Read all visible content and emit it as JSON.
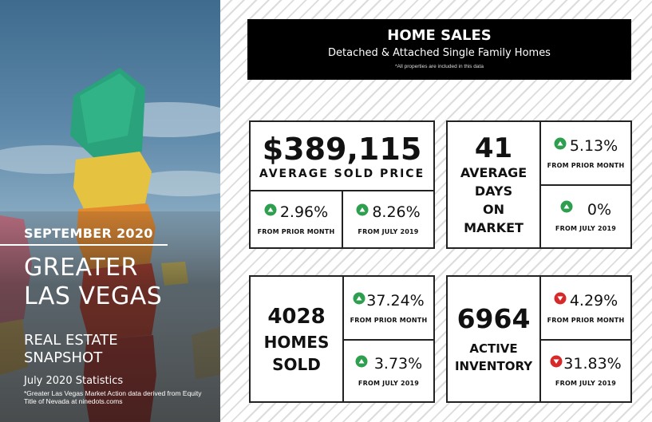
{
  "left_panel": {
    "month": "SEPTEMBER 2020",
    "city_line1": "GREATER",
    "city_line2": "LAS VEGAS",
    "snapshot_line1": "REAL ESTATE",
    "snapshot_line2": "SNAPSHOT",
    "stats_note": "July 2020 Statistics",
    "source_note": "*Greater Las Vegas Market Action data derived from Equity Title of Nevada at ninedots.coms"
  },
  "header": {
    "title": "HOME SALES",
    "subtitle": "Detached & Attached Single Family Homes",
    "note": "*All properties are included in this data"
  },
  "price": {
    "value": "$389,115",
    "label": "AVERAGE SOLD PRICE",
    "prior_month_pct": "2.96%",
    "prior_month_label": "FROM PRIOR MONTH",
    "prior_year_pct": "8.26%",
    "prior_year_label": "FROM JULY 2019"
  },
  "days": {
    "value": "41",
    "label_1": "AVERAGE",
    "label_2": "DAYS",
    "label_3": "ON",
    "label_4": "MARKET",
    "prior_month_pct": "5.13%",
    "prior_month_label": "FROM PRIOR MONTH",
    "prior_year_pct": "0%",
    "prior_year_label": "FROM JULY 2019"
  },
  "sold": {
    "value": "4028",
    "label_1": "HOMES",
    "label_2": "SOLD",
    "prior_month_pct": "37.24%",
    "prior_month_label": "FROM PRIOR MONTH",
    "prior_year_pct": "3.73%",
    "prior_year_label": "FROM JULY 2019"
  },
  "inventory": {
    "value": "6964",
    "label_1": "ACTIVE",
    "label_2": "INVENTORY",
    "prior_month_pct": "4.29%",
    "prior_month_label": "FROM PRIOR MONTH",
    "prior_year_pct": "31.83%",
    "prior_year_label": "FROM JULY 2019"
  },
  "colors": {
    "up": "#2e9e4f",
    "down": "#d62a2a",
    "border": "#222222",
    "header_bg": "#000000"
  },
  "icons": {
    "up": "triangle-up-circle-icon",
    "down": "triangle-down-circle-icon"
  }
}
